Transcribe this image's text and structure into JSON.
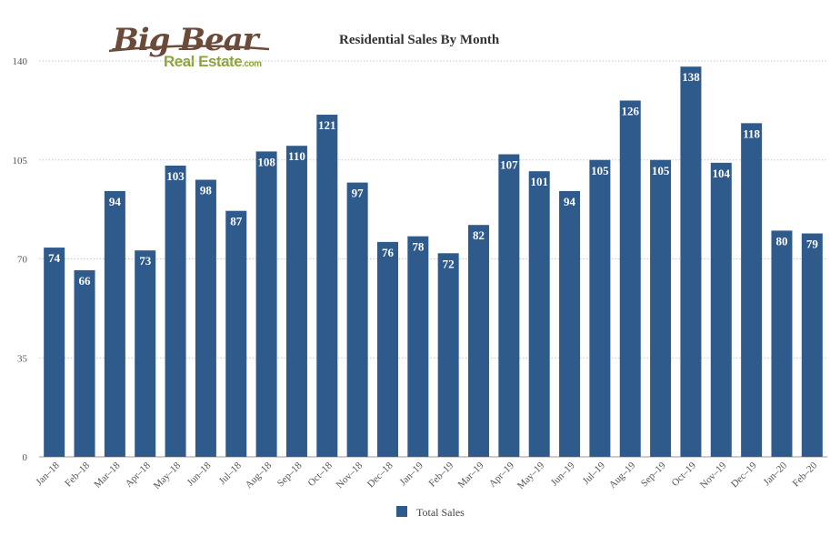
{
  "logo": {
    "line1": "Big Bear",
    "line2": "Real Estate",
    "suffix": ".com"
  },
  "chart_data": {
    "type": "bar",
    "title": "Residential Sales By Month",
    "xlabel": "",
    "ylabel": "",
    "ylim": [
      0,
      140
    ],
    "yticks": [
      0,
      35,
      70,
      105,
      140
    ],
    "grid": true,
    "legend": "bottom-center",
    "categories": [
      "Jan–18",
      "Feb–18",
      "Mar–18",
      "Apr–18",
      "May–18",
      "Jun–18",
      "Jul–18",
      "Aug–18",
      "Sep–18",
      "Oct–18",
      "Nov–18",
      "Dec–18",
      "Jan–19",
      "Feb–19",
      "Mar–19",
      "Apr–19",
      "May–19",
      "Jun–19",
      "Jul–19",
      "Aug–19",
      "Sep–19",
      "Oct–19",
      "Nov–19",
      "Dec–19",
      "Jan–20",
      "Feb–20"
    ],
    "series": [
      {
        "name": "Total Sales",
        "color": "#2f5a8c",
        "values": [
          74,
          66,
          94,
          73,
          103,
          98,
          87,
          108,
          110,
          121,
          97,
          76,
          78,
          72,
          82,
          107,
          101,
          94,
          105,
          126,
          105,
          138,
          104,
          118,
          80,
          79
        ]
      }
    ]
  }
}
